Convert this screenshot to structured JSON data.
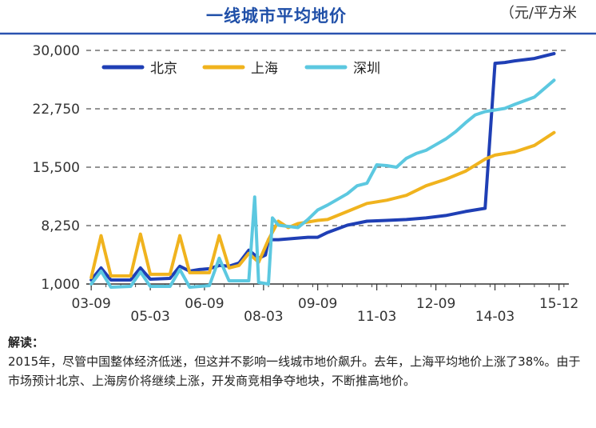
{
  "chart_data": {
    "type": "line",
    "title": "一线城市平均地价",
    "unit": "（元/平方米",
    "ylim": [
      1000,
      30000
    ],
    "yticks": [
      "30,000",
      "22,750",
      "15,500",
      "8,250",
      "1,000"
    ],
    "ytick_values": [
      30000,
      22750,
      15500,
      8250,
      1000
    ],
    "xticks": [
      {
        "label": "03-09",
        "x": 0
      },
      {
        "label": "05-03",
        "x": 6
      },
      {
        "label": "06-09",
        "x": 11.5
      },
      {
        "label": "08-03",
        "x": 17.5
      },
      {
        "label": "09-09",
        "x": 23
      },
      {
        "label": "11-03",
        "x": 29
      },
      {
        "label": "12-09",
        "x": 35
      },
      {
        "label": "14-03",
        "x": 41
      },
      {
        "label": "15-12",
        "x": 47.5
      }
    ],
    "xlim": [
      -0.5,
      48.5
    ],
    "grid": "horizontal-dashed",
    "legend": "top",
    "series": [
      {
        "name": "北京",
        "color": "#1f3fb5",
        "points": [
          [
            0,
            1500
          ],
          [
            1,
            3000
          ],
          [
            2,
            1500
          ],
          [
            4,
            1500
          ],
          [
            5,
            3000
          ],
          [
            6,
            1600
          ],
          [
            8,
            1700
          ],
          [
            9,
            3200
          ],
          [
            10,
            2600
          ],
          [
            11,
            2800
          ],
          [
            12,
            2900
          ],
          [
            13,
            3300
          ],
          [
            14,
            3200
          ],
          [
            15,
            3600
          ],
          [
            16,
            5200
          ],
          [
            17,
            4200
          ],
          [
            17.7,
            4600
          ],
          [
            18,
            6500
          ],
          [
            19,
            6500
          ],
          [
            21,
            6700
          ],
          [
            22,
            6800
          ],
          [
            23,
            6800
          ],
          [
            24,
            7400
          ],
          [
            26,
            8300
          ],
          [
            28,
            8800
          ],
          [
            30,
            8900
          ],
          [
            32,
            9000
          ],
          [
            34,
            9200
          ],
          [
            36,
            9500
          ],
          [
            38,
            10000
          ],
          [
            40,
            10400
          ],
          [
            41,
            28400
          ],
          [
            42,
            28500
          ],
          [
            43,
            28700
          ],
          [
            45,
            29000
          ],
          [
            47,
            29600
          ]
        ]
      },
      {
        "name": "上海",
        "color": "#f0b31e",
        "points": [
          [
            0,
            1800
          ],
          [
            1,
            7000
          ],
          [
            2,
            2000
          ],
          [
            3,
            2000
          ],
          [
            4,
            2000
          ],
          [
            5,
            7200
          ],
          [
            6,
            2200
          ],
          [
            8,
            2200
          ],
          [
            9,
            7000
          ],
          [
            10,
            2400
          ],
          [
            12,
            2400
          ],
          [
            13,
            7000
          ],
          [
            14,
            3000
          ],
          [
            15,
            3300
          ],
          [
            16,
            4800
          ],
          [
            17,
            3700
          ],
          [
            18,
            6500
          ],
          [
            19,
            8800
          ],
          [
            20,
            8000
          ],
          [
            21,
            8500
          ],
          [
            22,
            8700
          ],
          [
            23,
            8900
          ],
          [
            24,
            9000
          ],
          [
            26,
            10000
          ],
          [
            28,
            11000
          ],
          [
            30,
            11400
          ],
          [
            32,
            12000
          ],
          [
            34,
            13200
          ],
          [
            36,
            14000
          ],
          [
            38,
            15000
          ],
          [
            40,
            16500
          ],
          [
            41,
            17000
          ],
          [
            42,
            17200
          ],
          [
            43,
            17400
          ],
          [
            45,
            18200
          ],
          [
            47,
            19800
          ]
        ]
      },
      {
        "name": "深圳",
        "color": "#5cc8e0",
        "points": [
          [
            0,
            1000
          ],
          [
            1,
            2600
          ],
          [
            2,
            600
          ],
          [
            4,
            700
          ],
          [
            5,
            2500
          ],
          [
            6,
            700
          ],
          [
            8,
            700
          ],
          [
            9,
            2800
          ],
          [
            10,
            600
          ],
          [
            12,
            800
          ],
          [
            13,
            4200
          ],
          [
            14,
            1400
          ],
          [
            16,
            1400
          ],
          [
            16.6,
            11800
          ],
          [
            17,
            1200
          ],
          [
            18,
            1000
          ],
          [
            18.4,
            9200
          ],
          [
            19,
            8300
          ],
          [
            21,
            8000
          ],
          [
            22,
            9000
          ],
          [
            23,
            10200
          ],
          [
            24,
            10800
          ],
          [
            26,
            12200
          ],
          [
            27,
            13200
          ],
          [
            28,
            13500
          ],
          [
            29,
            15800
          ],
          [
            30,
            15700
          ],
          [
            31,
            15500
          ],
          [
            32,
            16600
          ],
          [
            33,
            17200
          ],
          [
            34,
            17600
          ],
          [
            35,
            18300
          ],
          [
            36,
            19000
          ],
          [
            37,
            19900
          ],
          [
            38,
            21000
          ],
          [
            39,
            22000
          ],
          [
            40,
            22400
          ],
          [
            41,
            22600
          ],
          [
            42,
            22800
          ],
          [
            43,
            23300
          ],
          [
            45,
            24200
          ],
          [
            47,
            26300
          ]
        ]
      }
    ]
  },
  "notes": {
    "label": "解读：",
    "paragraph": "2015年，尽管中国整体经济低迷，但这并不影响一线城市地价飙升。去年，上海平均地价上涨了38%。由于市场预计北京、上海房价将继续上涨，开发商竞相争夺地块，不断推高地价。"
  }
}
